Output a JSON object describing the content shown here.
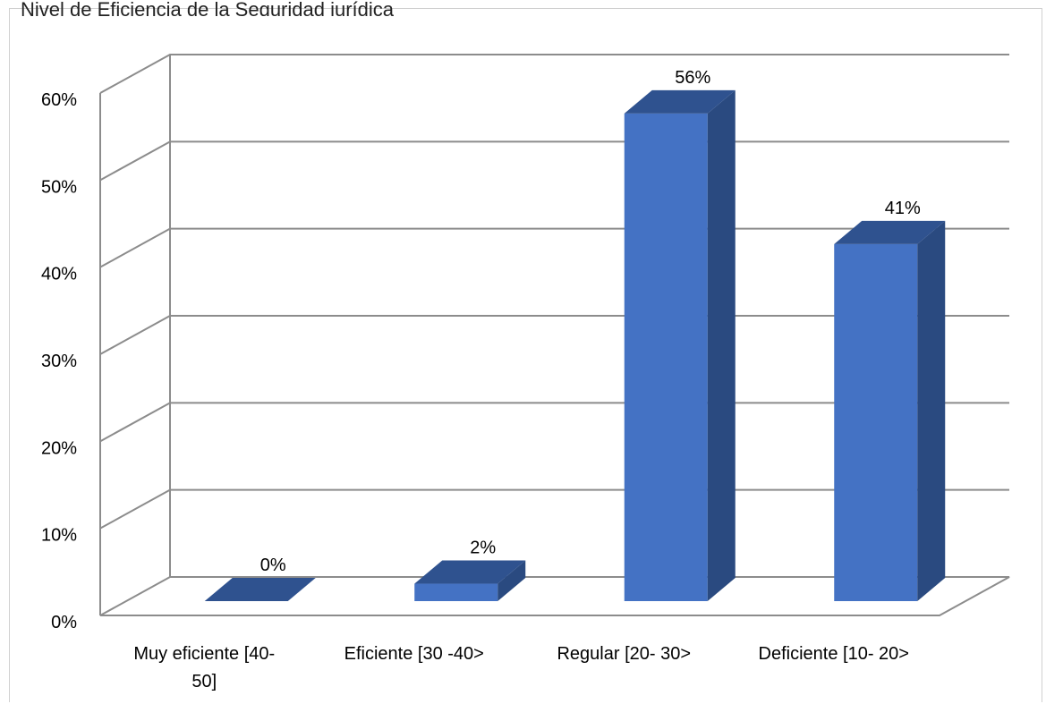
{
  "chart_data": {
    "type": "bar",
    "title": "Nivel de Eficiencia de la Seguridad jurídica",
    "categories": [
      "Muy eficiente [40-50]",
      "Eficiente [30 -40>",
      "Regular [20- 30>",
      "Deficiente [10- 20>"
    ],
    "category_lines": [
      [
        "Muy eficiente [40-",
        "50]"
      ],
      [
        "Eficiente [30 -40>"
      ],
      [
        "Regular [20- 30>"
      ],
      [
        "Deficiente [10- 20>"
      ]
    ],
    "values": [
      0,
      2,
      56,
      41
    ],
    "data_labels": [
      "0%",
      "2%",
      "56%",
      "41%"
    ],
    "ylim": [
      0,
      60
    ],
    "yticks": [
      0,
      10,
      20,
      30,
      40,
      50,
      60
    ],
    "ytick_labels": [
      "0%",
      "10%",
      "20%",
      "30%",
      "40%",
      "50%",
      "60%"
    ],
    "xlabel": "",
    "ylabel": "",
    "grid": true,
    "style": "3d-column",
    "colors": {
      "bar_front": "#4472C4",
      "bar_top": "#2F528F",
      "bar_side": "#2A4A80",
      "grid": "#8c8c8c",
      "text": "#000000"
    }
  }
}
